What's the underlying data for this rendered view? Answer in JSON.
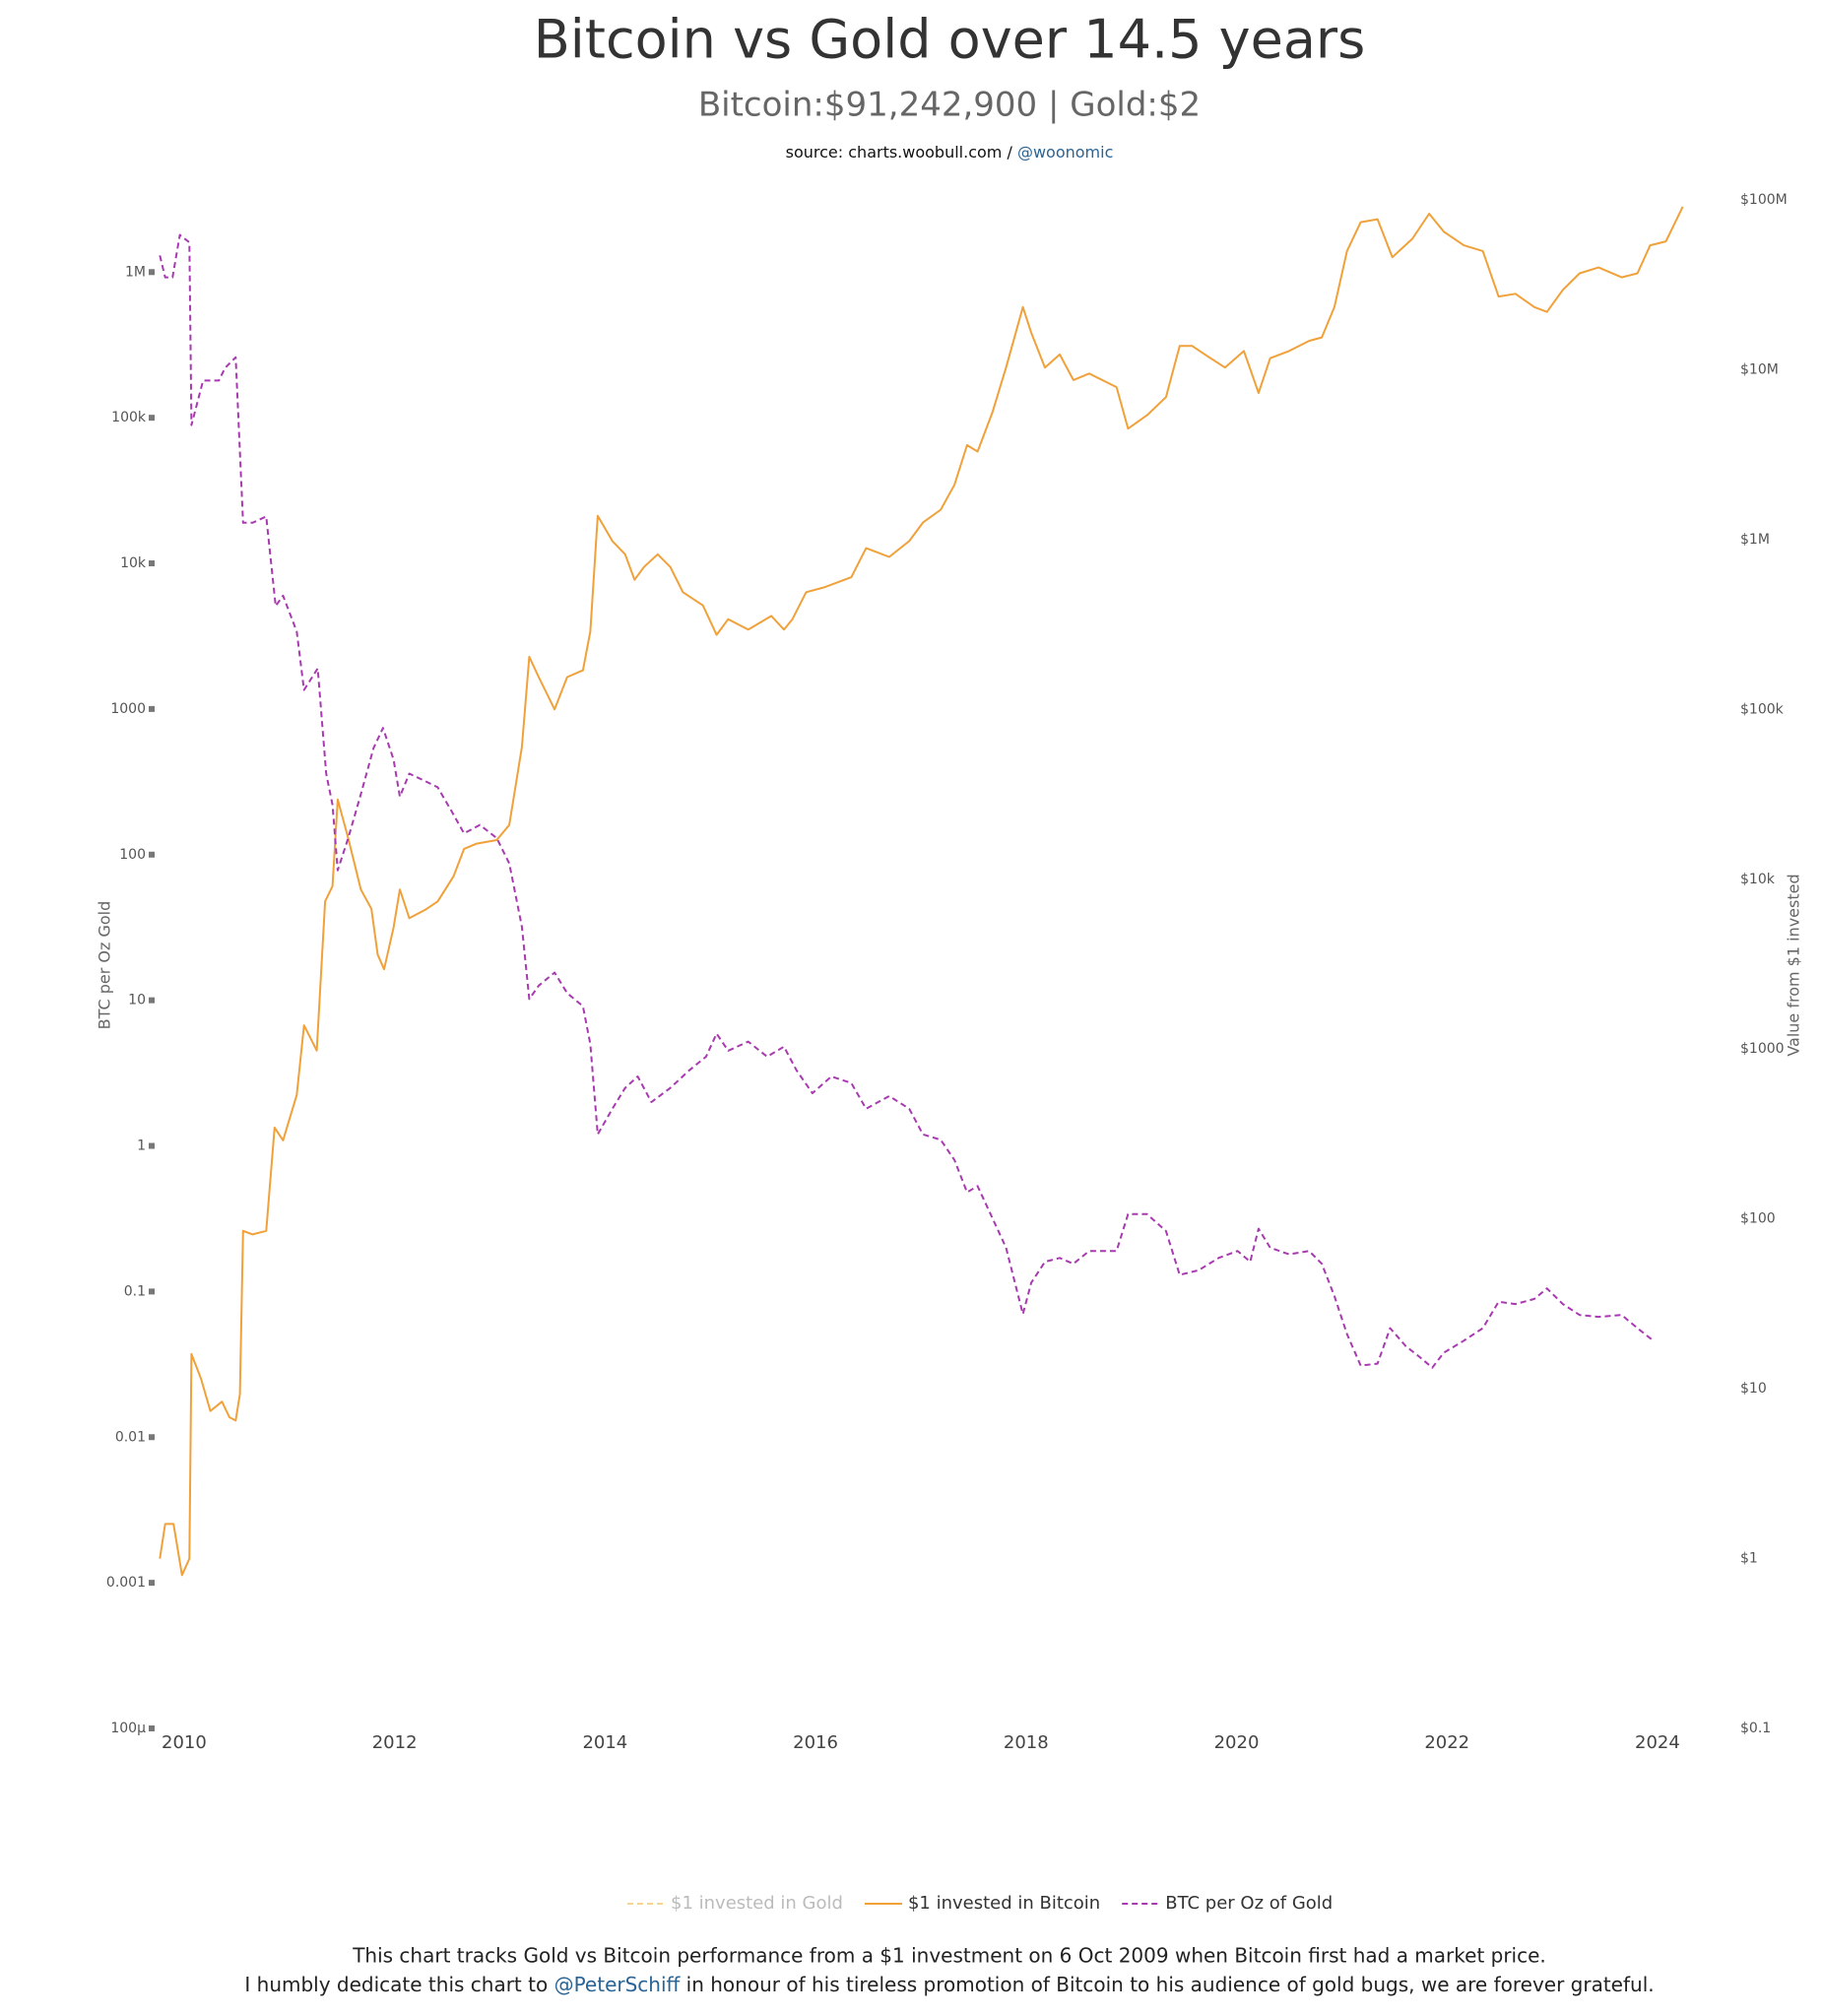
{
  "chart_data": {
    "type": "line",
    "title": "Bitcoin vs Gold over 14.5 years",
    "subtitle": "Bitcoin:$91,242,900 | Gold:$2",
    "source": {
      "text": "source: charts.woobull.com / ",
      "handle": "@woonomic"
    },
    "footnote": {
      "line1": "This chart tracks Gold vs Bitcoin performance from a $1 investment on 6 Oct 2009 when Bitcoin first had a market price.",
      "line2_start": "I humbly dedicate this chart to ",
      "line2_handle": "@PeterSchiff",
      "line2_end": " in honour of his tireless promotion of Bitcoin to his audience of gold bugs, we are forever grateful."
    },
    "ylabel": "BTC per Oz Gold",
    "y2label": "Value from $1 invested",
    "xlim": [
      2009.72,
      2024.3
    ],
    "xticks": [
      2010,
      2012,
      2014,
      2016,
      2018,
      2020,
      2022,
      2024
    ],
    "ylog": true,
    "ylim": [
      0.0001,
      3130000
    ],
    "yticks": [
      {
        "value": 0.0001,
        "label": "100µ"
      },
      0.001,
      0.01,
      0.1,
      1,
      10,
      100,
      1000,
      {
        "value": 10000,
        "label": "10k"
      },
      {
        "value": 100000,
        "label": "100k"
      },
      {
        "value": 1000000,
        "label": "1M"
      }
    ],
    "y2log": true,
    "y2lim": [
      0.1,
      100000000
    ],
    "y2ticks": [
      {
        "value": 0.1,
        "label": "$0.1"
      },
      {
        "value": 1,
        "label": "$1"
      },
      {
        "value": 10,
        "label": "$10"
      },
      {
        "value": 100,
        "label": "$100"
      },
      {
        "value": 1000,
        "label": "$1000"
      },
      {
        "value": 10000,
        "label": "$10k"
      },
      {
        "value": 100000,
        "label": "$100k"
      },
      {
        "value": 1000000,
        "label": "$1M"
      },
      {
        "value": 10000000,
        "label": "$10M"
      },
      {
        "value": 100000000,
        "label": "$100M"
      }
    ],
    "series": [
      {
        "name": "$1 invested in Gold",
        "color": "#f5d590",
        "dashed": true,
        "visible": false
      },
      {
        "name": "$1 invested in Bitcoin",
        "color": "#f0a13a",
        "dashed": false,
        "visible": true,
        "axis": "y2",
        "x": [
          2009.77,
          2009.82,
          2009.9,
          2009.98,
          2010.05,
          2010.07,
          2010.16,
          2010.25,
          2010.36,
          2010.43,
          2010.49,
          2010.53,
          2010.56,
          2010.65,
          2010.78,
          2010.86,
          2010.94,
          2011.07,
          2011.14,
          2011.26,
          2011.34,
          2011.41,
          2011.46,
          2011.56,
          2011.68,
          2011.78,
          2011.84,
          2011.9,
          2011.99,
          2012.05,
          2012.14,
          2012.29,
          2012.41,
          2012.56,
          2012.66,
          2012.78,
          2012.97,
          2013.09,
          2013.21,
          2013.28,
          2013.37,
          2013.52,
          2013.64,
          2013.79,
          2013.86,
          2013.93,
          2014.07,
          2014.19,
          2014.28,
          2014.37,
          2014.5,
          2014.62,
          2014.74,
          2014.93,
          2015.06,
          2015.17,
          2015.36,
          2015.58,
          2015.7,
          2015.78,
          2015.91,
          2016.09,
          2016.34,
          2016.48,
          2016.7,
          2016.89,
          2017.02,
          2017.19,
          2017.32,
          2017.44,
          2017.54,
          2017.68,
          2017.81,
          2017.97,
          2018.05,
          2018.18,
          2018.32,
          2018.45,
          2018.6,
          2018.86,
          2018.97,
          2019.15,
          2019.33,
          2019.46,
          2019.58,
          2019.7,
          2019.89,
          2020.07,
          2020.21,
          2020.32,
          2020.5,
          2020.69,
          2020.81,
          2020.93,
          2021.05,
          2021.18,
          2021.34,
          2021.48,
          2021.67,
          2021.83,
          2021.97,
          2022.16,
          2022.34,
          2022.49,
          2022.65,
          2022.83,
          2022.95,
          2023.1,
          2023.26,
          2023.44,
          2023.66,
          2023.81,
          2023.93,
          2024.08,
          2024.24
        ],
        "values": [
          1.0,
          1.6,
          1.6,
          0.8,
          1.0,
          16,
          11.5,
          7.4,
          8.4,
          6.8,
          6.5,
          9.3,
          85,
          81,
          85,
          345,
          290,
          537,
          1380,
          980,
          7400,
          9100,
          29500,
          17400,
          8700,
          6700,
          3600,
          2950,
          5200,
          8700,
          5900,
          6600,
          7400,
          10400,
          15100,
          16200,
          17000,
          20900,
          60000,
          204000,
          155000,
          100000,
          155000,
          170000,
          288000,
          1380000,
          980000,
          820000,
          580000,
          690000,
          820000,
          690000,
          490000,
          410000,
          275000,
          340000,
          295000,
          355000,
          295000,
          340000,
          490000,
          525000,
          600000,
          890000,
          790000,
          980000,
          1260000,
          1500000,
          2100000,
          3600000,
          3300000,
          5600000,
          10300000,
          23400000,
          16500000,
          10300000,
          12300000,
          8700000,
          9500000,
          7900000,
          4500000,
          5400000,
          6900000,
          13800000,
          13800000,
          12300000,
          10300000,
          12900000,
          7300000,
          11700000,
          12900000,
          14800000,
          15500000,
          23400000,
          50000000,
          74000000,
          77000000,
          46000000,
          59000000,
          83000000,
          65000000,
          54000000,
          50000000,
          27000000,
          28000000,
          23400000,
          21900000,
          29500000,
          37000000,
          40000000,
          35000000,
          37000000,
          54000000,
          57000000,
          91242900
        ]
      },
      {
        "name": "BTC per Oz of Gold",
        "color": "#a83ab0",
        "dashed": true,
        "visible": true,
        "axis": "y",
        "x": [
          2009.77,
          2009.82,
          2009.89,
          2009.96,
          2010.05,
          2010.07,
          2010.18,
          2010.33,
          2010.39,
          2010.49,
          2010.56,
          2010.65,
          2010.78,
          2010.87,
          2010.94,
          2011.07,
          2011.14,
          2011.27,
          2011.35,
          2011.41,
          2011.46,
          2011.56,
          2011.68,
          2011.8,
          2011.89,
          2011.99,
          2012.05,
          2012.14,
          2012.29,
          2012.41,
          2012.54,
          2012.66,
          2012.81,
          2012.97,
          2013.09,
          2013.21,
          2013.28,
          2013.37,
          2013.52,
          2013.64,
          2013.79,
          2013.86,
          2013.93,
          2014.07,
          2014.19,
          2014.31,
          2014.44,
          2014.62,
          2014.8,
          2014.96,
          2015.06,
          2015.17,
          2015.36,
          2015.54,
          2015.7,
          2015.82,
          2015.97,
          2016.15,
          2016.34,
          2016.48,
          2016.7,
          2016.89,
          2017.02,
          2017.19,
          2017.32,
          2017.44,
          2017.54,
          2017.68,
          2017.81,
          2017.97,
          2018.05,
          2018.18,
          2018.32,
          2018.45,
          2018.6,
          2018.86,
          2018.97,
          2019.15,
          2019.33,
          2019.46,
          2019.64,
          2019.83,
          2020.01,
          2020.13,
          2020.21,
          2020.32,
          2020.5,
          2020.69,
          2020.81,
          2020.93,
          2021.05,
          2021.18,
          2021.34,
          2021.46,
          2021.61,
          2021.73,
          2021.86,
          2021.97,
          2022.16,
          2022.34,
          2022.49,
          2022.65,
          2022.83,
          2022.95,
          2023.1,
          2023.26,
          2023.44,
          2023.66,
          2023.81,
          2023.96
        ],
        "values": [
          1300000,
          920000,
          920000,
          1800000,
          1600000,
          89000,
          180000,
          180000,
          220000,
          260000,
          19000,
          19000,
          21000,
          5100,
          6000,
          3400,
          1350,
          1900,
          360,
          220,
          78,
          130,
          260,
          540,
          740,
          450,
          250,
          360,
          320,
          290,
          200,
          140,
          160,
          130,
          87,
          32,
          10.2,
          12.6,
          15.5,
          11.2,
          9.1,
          5.0,
          1.2,
          1.8,
          2.5,
          3.0,
          2.0,
          2.5,
          3.3,
          4.1,
          5.9,
          4.5,
          5.2,
          4.1,
          4.8,
          3.3,
          2.3,
          3.0,
          2.7,
          1.8,
          2.2,
          1.8,
          1.2,
          1.1,
          0.8,
          0.48,
          0.53,
          0.32,
          0.2,
          0.07,
          0.115,
          0.16,
          0.17,
          0.155,
          0.19,
          0.19,
          0.34,
          0.34,
          0.26,
          0.13,
          0.14,
          0.17,
          0.19,
          0.16,
          0.27,
          0.2,
          0.18,
          0.19,
          0.155,
          0.093,
          0.051,
          0.031,
          0.032,
          0.056,
          0.042,
          0.036,
          0.03,
          0.038,
          0.046,
          0.056,
          0.085,
          0.082,
          0.089,
          0.105,
          0.082,
          0.069,
          0.067,
          0.069,
          0.056,
          0.046
        ]
      }
    ]
  }
}
